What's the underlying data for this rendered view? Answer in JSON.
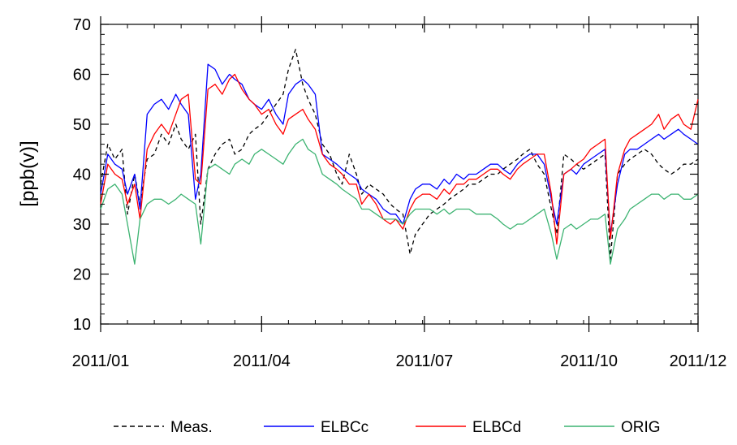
{
  "chart_data": {
    "type": "line",
    "title": "",
    "xlabel": "",
    "ylabel": "[ppb(v)]",
    "ylim": [
      10,
      70
    ],
    "yticks": [
      10,
      20,
      30,
      40,
      50,
      60,
      70
    ],
    "x_ticks": [
      {
        "label": "2011/01",
        "day": 0
      },
      {
        "label": "2011/04",
        "day": 90
      },
      {
        "label": "2011/07",
        "day": 181
      },
      {
        "label": "2011/10",
        "day": 273
      },
      {
        "label": "2011/12",
        "day": 334
      }
    ],
    "x_range_days": [
      0,
      334
    ],
    "legend_position": "bottom",
    "grid": false,
    "series": [
      {
        "name": "Meas.",
        "color": "#000000",
        "dash": "dashed",
        "x": [
          0,
          4,
          8,
          12,
          15,
          19,
          22,
          26,
          30,
          34,
          38,
          42,
          45,
          49,
          53,
          56,
          60,
          64,
          68,
          72,
          75,
          79,
          83,
          86,
          90,
          94,
          98,
          102,
          105,
          109,
          113,
          116,
          120,
          124,
          128,
          132,
          135,
          139,
          143,
          146,
          150,
          154,
          158,
          162,
          165,
          169,
          173,
          176,
          180,
          184,
          188,
          192,
          195,
          199,
          203,
          206,
          210,
          214,
          218,
          222,
          225,
          229,
          233,
          236,
          240,
          244,
          248,
          252,
          255,
          259,
          263,
          266,
          270,
          274,
          278,
          282,
          285,
          289,
          293,
          296,
          300,
          304,
          308,
          312,
          315,
          319,
          323,
          326,
          330,
          334
        ],
        "values": [
          38,
          46,
          43,
          45,
          32,
          40,
          34,
          43,
          44,
          48,
          46,
          50,
          47,
          45,
          48,
          30,
          41,
          44,
          46,
          47,
          44,
          45,
          48,
          49,
          50,
          52,
          54,
          56,
          61,
          65,
          58,
          55,
          52,
          46,
          44,
          40,
          38,
          44,
          40,
          36,
          38,
          37,
          36,
          34,
          33,
          32,
          24,
          28,
          30,
          32,
          33,
          34,
          35,
          36,
          37,
          38,
          38,
          39,
          40,
          40,
          41,
          42,
          43,
          44,
          45,
          42,
          40,
          33,
          28,
          44,
          43,
          42,
          41,
          42,
          43,
          44,
          23,
          40,
          42,
          43,
          44,
          45,
          44,
          42,
          41,
          40,
          41,
          42,
          42,
          43
        ]
      },
      {
        "name": "ELBCc",
        "color": "#0000ff",
        "dash": "solid",
        "x": [
          0,
          4,
          8,
          12,
          15,
          19,
          22,
          26,
          30,
          34,
          38,
          42,
          45,
          49,
          53,
          56,
          60,
          64,
          68,
          72,
          75,
          79,
          83,
          86,
          90,
          94,
          98,
          102,
          105,
          109,
          113,
          116,
          120,
          124,
          128,
          132,
          135,
          139,
          143,
          146,
          150,
          154,
          158,
          162,
          165,
          169,
          173,
          176,
          180,
          184,
          188,
          192,
          195,
          199,
          203,
          206,
          210,
          214,
          218,
          222,
          225,
          229,
          233,
          236,
          240,
          244,
          248,
          252,
          255,
          259,
          263,
          266,
          270,
          274,
          278,
          282,
          285,
          289,
          293,
          296,
          300,
          304,
          308,
          312,
          315,
          319,
          323,
          326,
          330,
          334
        ],
        "values": [
          36,
          44,
          42,
          41,
          36,
          40,
          33,
          52,
          54,
          55,
          53,
          56,
          54,
          52,
          35,
          40,
          62,
          61,
          58,
          60,
          59,
          58,
          55,
          54,
          53,
          55,
          52,
          50,
          56,
          58,
          59,
          58,
          56,
          44,
          43,
          42,
          41,
          40,
          39,
          37,
          36,
          35,
          33,
          32,
          32,
          30,
          35,
          37,
          38,
          38,
          37,
          39,
          38,
          40,
          39,
          40,
          40,
          41,
          42,
          42,
          41,
          40,
          42,
          43,
          44,
          44,
          42,
          35,
          30,
          40,
          41,
          40,
          42,
          43,
          44,
          45,
          28,
          38,
          44,
          45,
          45,
          46,
          47,
          48,
          47,
          48,
          49,
          48,
          47,
          46
        ]
      },
      {
        "name": "ELBCd",
        "color": "#ff0000",
        "dash": "solid",
        "x": [
          0,
          4,
          8,
          12,
          15,
          19,
          22,
          26,
          30,
          34,
          38,
          42,
          45,
          49,
          53,
          56,
          60,
          64,
          68,
          72,
          75,
          79,
          83,
          86,
          90,
          94,
          98,
          102,
          105,
          109,
          113,
          116,
          120,
          124,
          128,
          132,
          135,
          139,
          143,
          146,
          150,
          154,
          158,
          162,
          165,
          169,
          173,
          176,
          180,
          184,
          188,
          192,
          195,
          199,
          203,
          206,
          210,
          214,
          218,
          222,
          225,
          229,
          233,
          236,
          240,
          244,
          248,
          252,
          255,
          259,
          263,
          266,
          270,
          274,
          278,
          282,
          285,
          289,
          293,
          296,
          300,
          304,
          308,
          312,
          315,
          319,
          323,
          326,
          330,
          334
        ],
        "values": [
          34,
          42,
          40,
          39,
          34,
          38,
          31,
          45,
          48,
          50,
          48,
          52,
          55,
          56,
          39,
          38,
          57,
          58,
          56,
          59,
          60,
          57,
          55,
          54,
          52,
          53,
          50,
          48,
          51,
          52,
          53,
          51,
          49,
          44,
          42,
          41,
          40,
          38,
          38,
          34,
          36,
          34,
          31,
          30,
          31,
          29,
          33,
          35,
          36,
          36,
          35,
          37,
          36,
          38,
          38,
          39,
          39,
          40,
          41,
          41,
          40,
          39,
          41,
          42,
          43,
          44,
          44,
          36,
          26,
          40,
          41,
          42,
          43,
          45,
          46,
          47,
          27,
          40,
          45,
          47,
          48,
          49,
          50,
          52,
          49,
          51,
          52,
          50,
          49,
          55
        ]
      },
      {
        "name": "ORIG",
        "color": "#3cb371",
        "dash": "solid",
        "x": [
          0,
          4,
          8,
          12,
          15,
          19,
          22,
          26,
          30,
          34,
          38,
          42,
          45,
          49,
          53,
          56,
          60,
          64,
          68,
          72,
          75,
          79,
          83,
          86,
          90,
          94,
          98,
          102,
          105,
          109,
          113,
          116,
          120,
          124,
          128,
          132,
          135,
          139,
          143,
          146,
          150,
          154,
          158,
          162,
          165,
          169,
          173,
          176,
          180,
          184,
          188,
          192,
          195,
          199,
          203,
          206,
          210,
          214,
          218,
          222,
          225,
          229,
          233,
          236,
          240,
          244,
          248,
          252,
          255,
          259,
          263,
          266,
          270,
          274,
          278,
          282,
          285,
          289,
          293,
          296,
          300,
          304,
          308,
          312,
          315,
          319,
          323,
          326,
          330,
          334
        ],
        "values": [
          33,
          37,
          38,
          36,
          30,
          22,
          31,
          34,
          35,
          35,
          34,
          35,
          36,
          35,
          34,
          26,
          41,
          42,
          41,
          40,
          42,
          43,
          42,
          44,
          45,
          44,
          43,
          42,
          44,
          46,
          47,
          45,
          44,
          40,
          39,
          38,
          37,
          36,
          35,
          33,
          33,
          32,
          31,
          31,
          31,
          30,
          32,
          33,
          33,
          33,
          32,
          33,
          32,
          33,
          33,
          33,
          32,
          32,
          32,
          31,
          30,
          29,
          30,
          30,
          31,
          32,
          33,
          28,
          23,
          29,
          30,
          29,
          30,
          31,
          31,
          32,
          22,
          29,
          31,
          33,
          34,
          35,
          36,
          36,
          35,
          36,
          36,
          35,
          35,
          36
        ]
      }
    ]
  }
}
